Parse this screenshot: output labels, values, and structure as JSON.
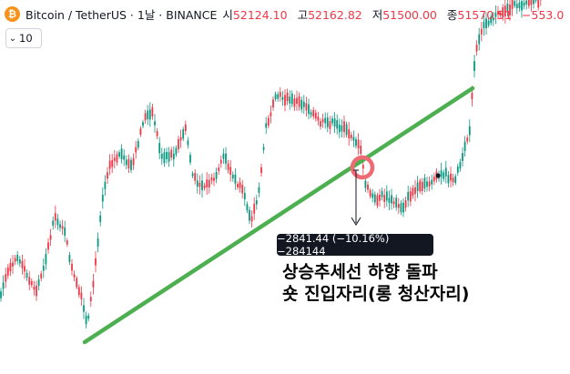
{
  "header": {
    "coin_glyph": "₿",
    "symbol": "Bitcoin / TetherUS · 1날 · BINANCE",
    "ohlc": [
      {
        "key": "시",
        "value": "52124.10"
      },
      {
        "key": "고",
        "value": "52162.82"
      },
      {
        "key": "저",
        "value": "51500.00"
      },
      {
        "key": "종",
        "value": "51570.51"
      }
    ],
    "change": "−553.0"
  },
  "volume_selector": {
    "value": "10",
    "icon": "chevron-down-icon"
  },
  "measure_tooltip": "−2841.44 (−10.16%) −284144",
  "annotation": {
    "line1": "상승추세선 하향 돌파",
    "line2": "숏 진입자리(롱  청산자리)"
  },
  "colors": {
    "up": "#089981",
    "down": "#f23645",
    "trendline": "#4caf50",
    "circle": "#f06a75",
    "text": "#131722"
  }
}
